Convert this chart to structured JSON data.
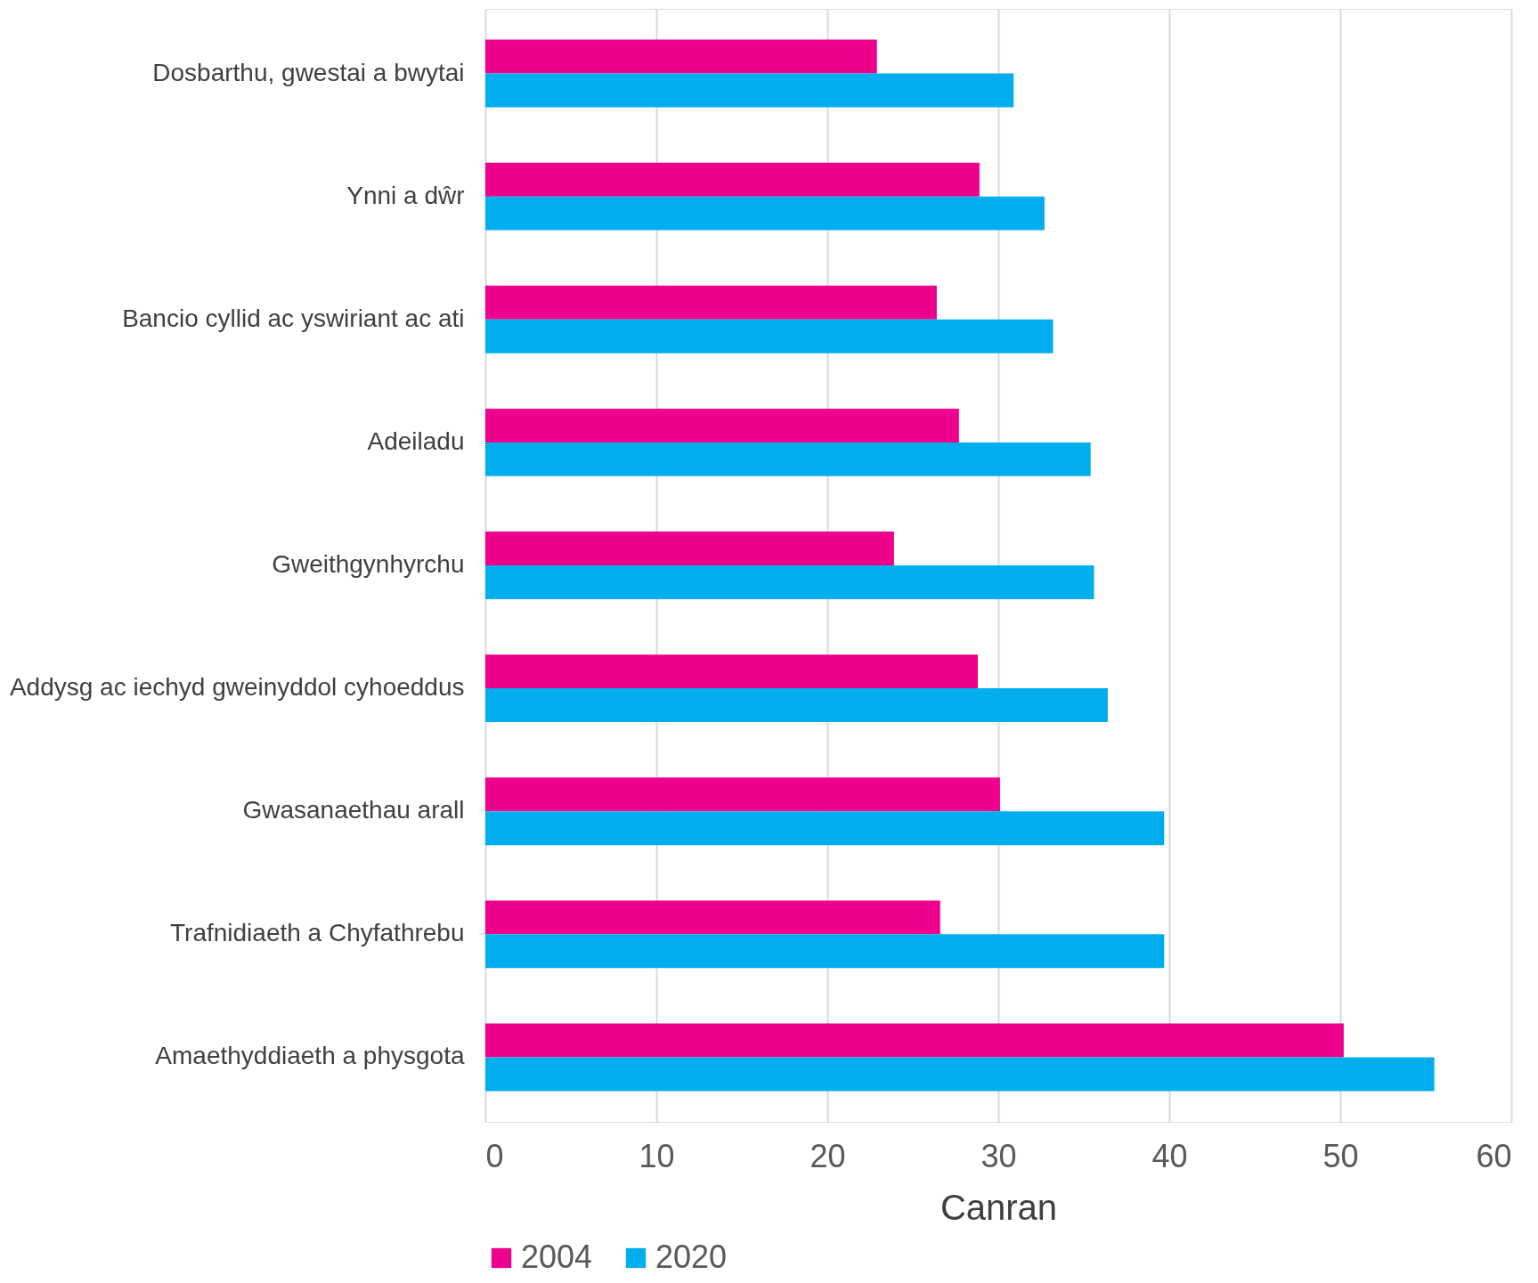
{
  "chart_data": {
    "type": "bar",
    "orientation": "horizontal",
    "xlabel": "Canran",
    "categories": [
      "Dosbarthu, gwestai a bwytai",
      "Ynni a dŵr",
      "Bancio cyllid ac yswiriant ac ati",
      "Adeiladu",
      "Gweithgynhyrchu",
      "Addysg ac iechyd gweinyddol cyhoeddus",
      "Gwasanaethau arall",
      "Trafnidiaeth a Chyfathrebu",
      "Amaethyddiaeth a physgota"
    ],
    "series": [
      {
        "name": "2004",
        "color": "#ec008c",
        "values": [
          22.9,
          28.9,
          26.4,
          27.7,
          23.9,
          28.8,
          30.1,
          26.6,
          50.2
        ]
      },
      {
        "name": "2020",
        "color": "#00aeef",
        "values": [
          30.9,
          32.7,
          33.2,
          35.4,
          35.6,
          36.4,
          39.7,
          39.7,
          55.5
        ]
      }
    ],
    "xlim": [
      0,
      60
    ],
    "xticks": [
      0,
      10,
      20,
      30,
      40,
      50,
      60
    ],
    "grid": "x",
    "legend": "bottom"
  }
}
